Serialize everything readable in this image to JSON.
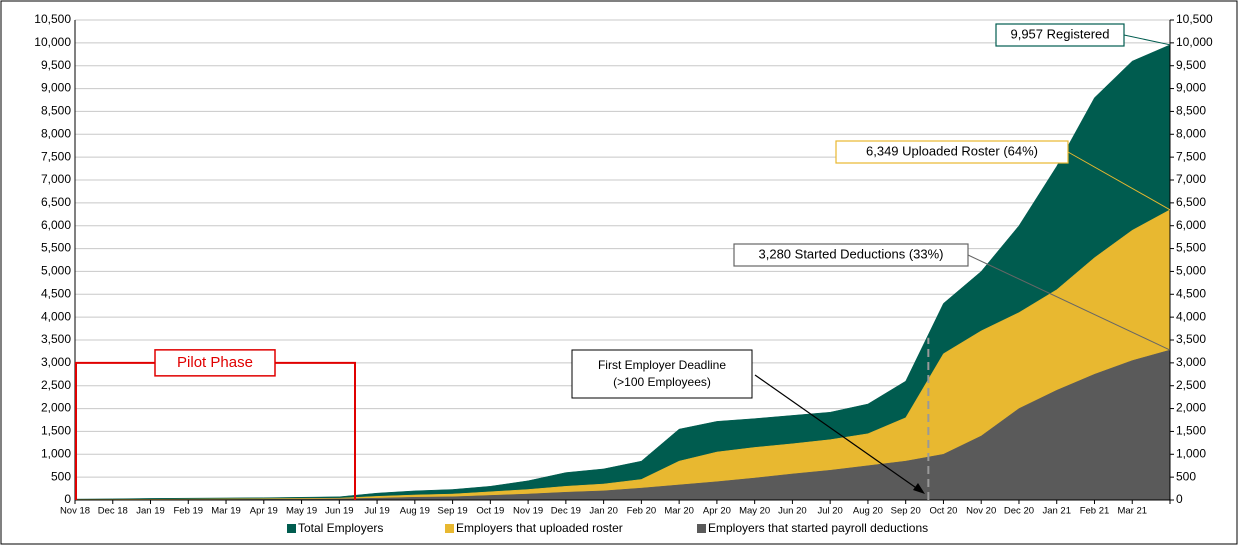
{
  "chart_data": {
    "type": "area",
    "categories": [
      "Nov 18",
      "Dec 18",
      "Jan 19",
      "Feb 19",
      "Mar 19",
      "Apr 19",
      "May 19",
      "Jun 19",
      "Jul 19",
      "Aug 19",
      "Sep 19",
      "Oct 19",
      "Nov 19",
      "Dec 19",
      "Jan 20",
      "Feb 20",
      "Mar 20",
      "Apr 20",
      "May 20",
      "Jun 20",
      "Jul 20",
      "Aug 20",
      "Sep 20",
      "Oct 20",
      "Nov 20",
      "Dec 20",
      "Jan 21",
      "Feb 21",
      "Mar 21",
      null
    ],
    "series": [
      {
        "name": "Total Employers",
        "color": "#005c4f",
        "values": [
          20,
          25,
          35,
          40,
          45,
          50,
          60,
          70,
          150,
          200,
          230,
          300,
          420,
          600,
          680,
          850,
          1550,
          1720,
          1780,
          1850,
          1920,
          2100,
          2600,
          4300,
          5000,
          6000,
          7300,
          8800,
          9600,
          9957
        ]
      },
      {
        "name": "Employers that uploaded roster",
        "color": "#e8b830",
        "values": [
          10,
          12,
          15,
          20,
          25,
          30,
          35,
          40,
          80,
          110,
          130,
          180,
          230,
          300,
          350,
          450,
          850,
          1050,
          1150,
          1230,
          1320,
          1450,
          1800,
          3200,
          3700,
          4100,
          4600,
          5300,
          5900,
          6349
        ]
      },
      {
        "name": "Employers that started payroll deductions",
        "color": "#5a5a5a",
        "values": [
          5,
          6,
          8,
          10,
          12,
          15,
          20,
          25,
          40,
          60,
          70,
          100,
          130,
          170,
          200,
          260,
          330,
          400,
          480,
          570,
          650,
          750,
          850,
          1000,
          1400,
          2000,
          2400,
          2750,
          3050,
          3280
        ]
      }
    ],
    "ylim": [
      0,
      10500
    ],
    "yticks": [
      0,
      500,
      {
        "value": 1000,
        "label": "1,000"
      },
      {
        "value": 1500,
        "label": "1,500"
      },
      {
        "value": 2000,
        "label": "2,000"
      },
      {
        "value": 2500,
        "label": "2,500"
      },
      {
        "value": 3000,
        "label": "3,000"
      },
      {
        "value": 3500,
        "label": "3,500"
      },
      {
        "value": 4000,
        "label": "4,000"
      },
      {
        "value": 4500,
        "label": "4,500"
      },
      {
        "value": 5000,
        "label": "5,000"
      },
      {
        "value": 5500,
        "label": "5,500"
      },
      {
        "value": 6000,
        "label": "6,000"
      },
      {
        "value": 6500,
        "label": "6,500"
      },
      {
        "value": 7000,
        "label": "7,000"
      },
      {
        "value": 7500,
        "label": "7,500"
      },
      {
        "value": 8000,
        "label": "8,000"
      },
      {
        "value": 8500,
        "label": "8,500"
      },
      {
        "value": 9000,
        "label": "9,000"
      },
      {
        "value": 9500,
        "label": "9,500"
      },
      {
        "value": 10000,
        "label": "10,000"
      },
      {
        "value": 10500,
        "label": "10,500"
      }
    ],
    "y2lim": [
      0,
      10500
    ],
    "y2ticks": [
      0,
      500,
      {
        "value": 1000,
        "label": "1,000"
      },
      {
        "value": 1500,
        "label": "1,500"
      },
      {
        "value": 2000,
        "label": "2,000"
      },
      {
        "value": 2500,
        "label": "2,500"
      },
      {
        "value": 3000,
        "label": "3,000"
      },
      {
        "value": 3500,
        "label": "3,500"
      },
      {
        "value": 4000,
        "label": "4,000"
      },
      {
        "value": 4500,
        "label": "4,500"
      },
      {
        "value": 5000,
        "label": "5,000"
      },
      {
        "value": 5500,
        "label": "5,500"
      },
      {
        "value": 6000,
        "label": "6,000"
      },
      {
        "value": 6500,
        "label": "6,500"
      },
      {
        "value": 7000,
        "label": "7,000"
      },
      {
        "value": 7500,
        "label": "7,500"
      },
      {
        "value": 8000,
        "label": "8,000"
      },
      {
        "value": 8500,
        "label": "8,500"
      },
      {
        "value": 9000,
        "label": "9,000"
      },
      {
        "value": 9500,
        "label": "9,500"
      },
      {
        "value": 10000,
        "label": "10,000"
      },
      {
        "value": 10500,
        "label": "10,500"
      }
    ],
    "grid": true,
    "legend": "bottom",
    "annotations": [
      "9,957 Registered",
      "6,349 Uploaded Roster (64%)",
      "3,280 Started Deductions (33%)",
      "First Employer Deadline",
      "(>100 Employees)",
      "Pilot Phase"
    ]
  }
}
